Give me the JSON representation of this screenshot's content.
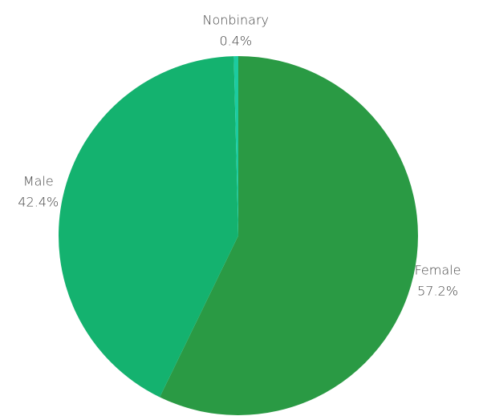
{
  "chart_data": {
    "type": "pie",
    "categories": [
      "Female",
      "Male",
      "Nonbinary"
    ],
    "values": [
      57.2,
      42.4,
      0.4
    ],
    "value_labels": [
      "57.2%",
      "42.4%",
      "0.4%"
    ],
    "colors": [
      "#2a9a44",
      "#14b26f",
      "#1ccba0"
    ]
  }
}
